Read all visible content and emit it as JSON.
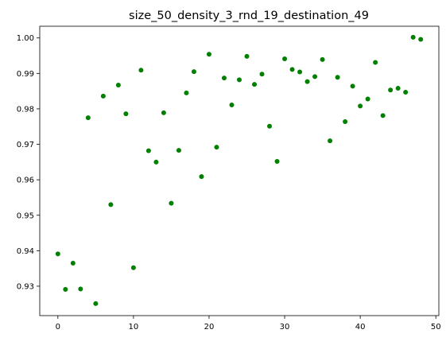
{
  "chart_data": {
    "type": "scatter",
    "title": "size_50_density_3_rnd_19_destination_49",
    "xlabel": "",
    "ylabel": "",
    "xlim": [
      -2.4,
      50.4
    ],
    "ylim": [
      0.9217,
      1.0033
    ],
    "x_ticks": [
      0,
      10,
      20,
      30,
      40,
      50
    ],
    "y_ticks": [
      0.93,
      0.94,
      0.95,
      0.96,
      0.97,
      0.98,
      0.99,
      1.0
    ],
    "x_tick_labels": [
      "0",
      "10",
      "20",
      "30",
      "40",
      "50"
    ],
    "y_tick_labels": [
      "0.93",
      "0.94",
      "0.95",
      "0.96",
      "0.97",
      "0.98",
      "0.99",
      "1.00"
    ],
    "grid": false,
    "marker_color": "#008000",
    "x": [
      0,
      1,
      2,
      3,
      4,
      5,
      6,
      7,
      8,
      9,
      10,
      11,
      12,
      13,
      14,
      15,
      16,
      17,
      18,
      19,
      20,
      21,
      22,
      23,
      24,
      25,
      26,
      27,
      28,
      29,
      30,
      31,
      32,
      33,
      34,
      35,
      36,
      37,
      38,
      39,
      40,
      41,
      42,
      43,
      44,
      45,
      46,
      47,
      48
    ],
    "y": [
      0.9391,
      0.9291,
      0.9365,
      0.9292,
      0.9775,
      0.9251,
      0.9836,
      0.953,
      0.9867,
      0.9786,
      0.9352,
      0.9909,
      0.9682,
      0.965,
      0.9789,
      0.9534,
      0.9683,
      0.9845,
      0.9905,
      0.9609,
      0.9954,
      0.9692,
      0.9887,
      0.9811,
      0.9882,
      0.9948,
      0.9869,
      0.9898,
      0.9751,
      0.9652,
      0.9941,
      0.9911,
      0.9904,
      0.9877,
      0.9891,
      0.9939,
      0.971,
      0.9889,
      0.9764,
      0.9864,
      0.9808,
      0.9828,
      0.9931,
      0.9781,
      0.9853,
      0.9858,
      0.9847,
      1.0002,
      0.9996
    ]
  }
}
